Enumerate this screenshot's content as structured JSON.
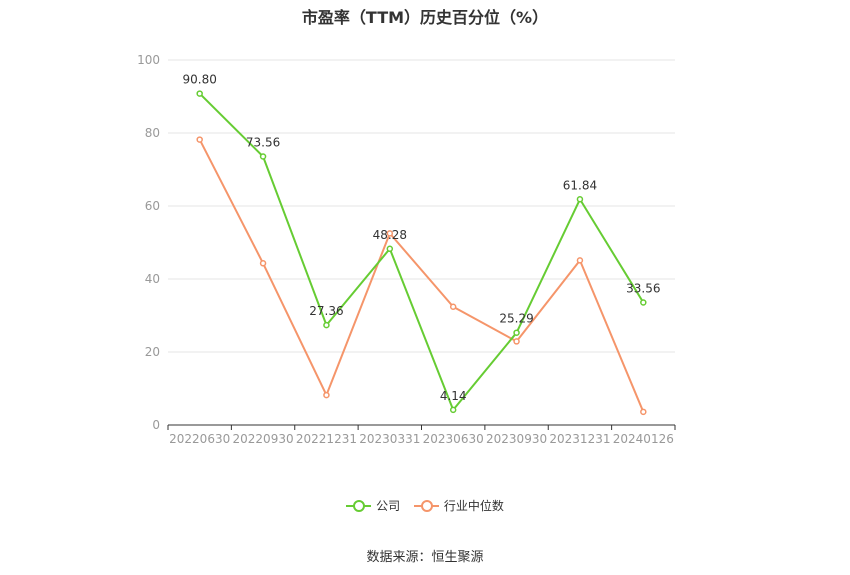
{
  "title": "市盈率（TTM）历史百分位（%）",
  "source": "数据来源：恒生聚源",
  "chart_data": {
    "type": "line",
    "categories": [
      "20220630",
      "20220930",
      "20221231",
      "20230331",
      "20230630",
      "20230930",
      "20231231",
      "20240126"
    ],
    "ylim": [
      0,
      100
    ],
    "yticks": [
      0,
      20,
      40,
      60,
      80,
      100
    ],
    "grid": true,
    "legend_position": "bottom",
    "series": [
      {
        "name": "公司",
        "color": "#66cc33",
        "values": [
          90.8,
          73.56,
          27.36,
          48.28,
          4.14,
          25.29,
          61.84,
          33.56
        ],
        "labels": [
          "90.80",
          "73.56",
          "27.36",
          "48.28",
          "4.14",
          "25.29",
          "61.84",
          "33.56"
        ]
      },
      {
        "name": "行业中位数",
        "color": "#f5956a",
        "values": [
          78.2,
          44.3,
          8.2,
          52.5,
          32.4,
          22.9,
          45.1,
          3.6
        ]
      }
    ]
  }
}
